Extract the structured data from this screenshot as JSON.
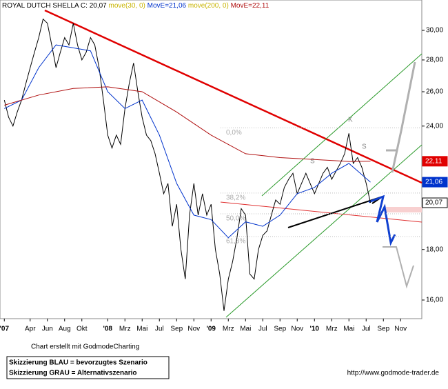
{
  "chart_data": {
    "type": "line",
    "log": true,
    "xlim": [
      -0.5,
      48.46
    ],
    "ylim": [
      15.32,
      32.2
    ],
    "xticks": [
      {
        "value": 0,
        "label": "'07"
      },
      {
        "value": 3,
        "label": "Apr"
      },
      {
        "value": 5,
        "label": "Jun"
      },
      {
        "value": 7,
        "label": "Aug"
      },
      {
        "value": 9,
        "label": "Okt"
      },
      {
        "value": 12,
        "label": "'08"
      },
      {
        "value": 14,
        "label": "Mrz"
      },
      {
        "value": 16,
        "label": "Mai"
      },
      {
        "value": 18,
        "label": "Jul"
      },
      {
        "value": 20,
        "label": "Sep"
      },
      {
        "value": 22,
        "label": "Nov"
      },
      {
        "value": 24,
        "label": "'09"
      },
      {
        "value": 26,
        "label": "Mrz"
      },
      {
        "value": 28,
        "label": "Mai"
      },
      {
        "value": 30,
        "label": "Jul"
      },
      {
        "value": 32,
        "label": "Sep"
      },
      {
        "value": 34,
        "label": "Nov"
      },
      {
        "value": 36,
        "label": "'10"
      },
      {
        "value": 38,
        "label": "Mrz"
      },
      {
        "value": 40,
        "label": "Mai"
      },
      {
        "value": 42,
        "label": "Jul"
      },
      {
        "value": 44,
        "label": "Sep"
      },
      {
        "value": 46,
        "label": "Nov"
      }
    ],
    "yticks": [
      {
        "value": 16,
        "label": "16,00"
      },
      {
        "value": 18,
        "label": "18,00"
      },
      {
        "value": 24,
        "label": "24,00"
      },
      {
        "value": 26,
        "label": "26,00"
      },
      {
        "value": 28,
        "label": "28,00"
      },
      {
        "value": 30,
        "label": "30,00"
      }
    ],
    "legend_color": "#c8b400",
    "series": [
      {
        "name": "ROYAL DUTCH SHELLA C: 20,07",
        "color": "#000000",
        "x": [
          0,
          0.5,
          1,
          1.5,
          2,
          2.5,
          3,
          3.5,
          4,
          4.5,
          5,
          5.5,
          6,
          6.5,
          7,
          7.5,
          8,
          8.5,
          9,
          9.5,
          10,
          10.5,
          11,
          11.5,
          12,
          12.5,
          13,
          13.5,
          14,
          14.5,
          15,
          15.5,
          16,
          16.5,
          17,
          17.5,
          18,
          18.5,
          19,
          19.5,
          20,
          20.5,
          21,
          21.5,
          22,
          22.5,
          23,
          23.5,
          24,
          24.5,
          25,
          25.5,
          26,
          26.5,
          27,
          27.5,
          28,
          28.5,
          29,
          29.5,
          30,
          30.5,
          31,
          31.5,
          32,
          32.5,
          33,
          33.5,
          34,
          34.5,
          35,
          35.5,
          36,
          36.5,
          37,
          37.5,
          38,
          38.5,
          39,
          39.5,
          40,
          40.5,
          41,
          41.5,
          42,
          42.5
        ],
        "values": [
          25.5,
          24.5,
          24,
          24.8,
          25.5,
          26.5,
          27.5,
          28.5,
          29.5,
          30.8,
          30.5,
          29,
          27.5,
          28.5,
          29.5,
          29,
          30.5,
          29,
          28,
          28.5,
          29.5,
          29,
          27.5,
          25.5,
          23.5,
          22.8,
          23.5,
          23,
          25,
          26.5,
          27.8,
          26,
          24.5,
          23.5,
          23.2,
          22.5,
          21.5,
          20.5,
          21,
          19,
          20,
          18,
          16.8,
          19.5,
          21,
          19.5,
          20.5,
          19.5,
          20,
          18,
          17,
          15.6,
          16.8,
          17.5,
          18.5,
          19.8,
          19.5,
          17,
          16.8,
          18,
          18.6,
          18.8,
          19.5,
          20.2,
          20,
          20.8,
          21.2,
          21.5,
          20.5,
          21,
          21.5,
          21,
          20.5,
          21,
          21.5,
          21.8,
          21.2,
          21.6,
          22,
          22.5,
          23.6,
          22,
          22.3,
          21.8,
          21,
          20.07
        ]
      },
      {
        "name": "move(30, 0)",
        "label": "MovE=21,06",
        "color": "#0033cc",
        "x": [
          0,
          2,
          4,
          6,
          8,
          10,
          12,
          14,
          16,
          18,
          20,
          22,
          24,
          26,
          28,
          30,
          32,
          34,
          36,
          38,
          40,
          42.5
        ],
        "values": [
          25,
          25.5,
          27.5,
          29,
          28.8,
          28.6,
          26,
          25,
          25.5,
          23.5,
          21,
          19.5,
          19.3,
          18.5,
          19.2,
          19,
          19.5,
          20.5,
          20.8,
          21.5,
          22,
          21.06
        ]
      },
      {
        "name": "move(200, 0)",
        "label": "MovE=22,11",
        "color": "#b01010",
        "x": [
          0,
          4,
          8,
          12,
          16,
          20,
          24,
          28,
          32,
          36,
          40,
          42.5
        ],
        "values": [
          25.2,
          25.8,
          26.2,
          26.3,
          26,
          24.8,
          23.5,
          22.5,
          22.3,
          22.2,
          22.1,
          22.11
        ]
      }
    ],
    "price_tags": [
      {
        "value": 22.11,
        "label": "22,11",
        "color": "#e00000"
      },
      {
        "value": 21.06,
        "label": "21,06",
        "color": "#0033cc"
      },
      {
        "value": 20.07,
        "label": "20,07",
        "color": "#000000"
      }
    ],
    "fib_levels": [
      {
        "value": 23.9,
        "label": "0,0%"
      },
      {
        "value": 20.53,
        "label": "38,2%"
      },
      {
        "value": 19.56,
        "label": "50,0%"
      },
      {
        "value": 18.55,
        "label": "61,8%"
      }
    ],
    "pattern_labels": [
      "S",
      "K",
      "S"
    ],
    "credit": "Chart erstellt mit GodmodeCharting",
    "notes": [
      "Skizzierung BLAU = bevorzugtes Szenario",
      "Skizzierung GRAU = Alternativszenario"
    ],
    "url": "http://www.godmode-trader.de"
  }
}
